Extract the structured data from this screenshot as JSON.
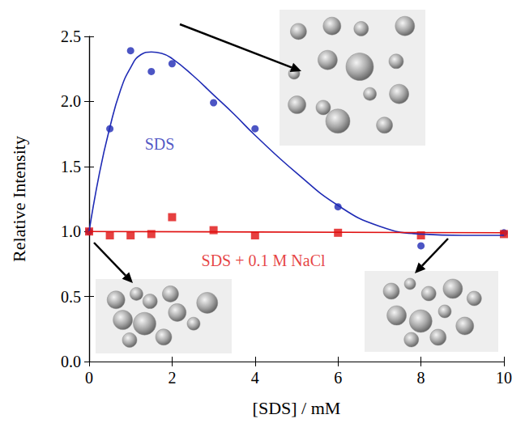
{
  "chart_data": {
    "type": "scatter",
    "x_label": "[SDS] / mM",
    "y_label": "Relative Intensity",
    "xlim": [
      0,
      10
    ],
    "xticks": [
      0,
      2,
      4,
      6,
      8,
      10
    ],
    "ylim": [
      0,
      2.5
    ],
    "yticks": [
      {
        "value": 0,
        "label": "0.0"
      },
      {
        "value": 0.5,
        "label": "0.5"
      },
      {
        "value": 1,
        "label": "1.0"
      },
      {
        "value": 1.5,
        "label": "1.5"
      },
      {
        "value": 2,
        "label": "2.0"
      },
      {
        "value": 2.5,
        "label": "2.5"
      }
    ],
    "grid": false,
    "series": [
      {
        "name": "SDS",
        "color": "#1f2bb5",
        "marker": "circle",
        "x": [
          0,
          0.5,
          1,
          1.5,
          2,
          3,
          4,
          6,
          8,
          10
        ],
        "values": [
          1.0,
          1.79,
          2.39,
          2.23,
          2.29,
          1.99,
          1.79,
          1.19,
          0.89,
          0.99
        ],
        "fit_x": [
          0,
          0.25,
          0.5,
          0.75,
          1,
          1.25,
          1.5,
          1.75,
          2,
          2.5,
          3,
          3.5,
          4,
          5,
          6,
          7,
          8,
          9,
          10
        ],
        "fit_values": [
          1.0,
          1.45,
          1.8,
          2.08,
          2.26,
          2.36,
          2.38,
          2.37,
          2.33,
          2.2,
          2.05,
          1.9,
          1.74,
          1.45,
          1.2,
          1.04,
          0.98,
          0.97,
          0.97
        ]
      },
      {
        "name": "SDS + 0.1 M NaCl",
        "color": "#e01010",
        "marker": "square",
        "x": [
          0,
          0.5,
          1,
          1.5,
          2,
          3,
          4,
          6,
          8,
          10
        ],
        "values": [
          1.0,
          0.97,
          0.97,
          0.98,
          1.11,
          1.01,
          0.97,
          0.99,
          0.97,
          0.98
        ],
        "fit_x": [
          0,
          10
        ],
        "fit_values": [
          1.0,
          0.99
        ]
      }
    ],
    "annotations": [
      {
        "text": "SDS",
        "x": 1.7,
        "y": 1.67,
        "color": "#1f2bb5"
      },
      {
        "text": "SDS + 0.1 M NaCl",
        "x": 4.2,
        "y": 0.78,
        "color": "#e01010"
      }
    ]
  }
}
